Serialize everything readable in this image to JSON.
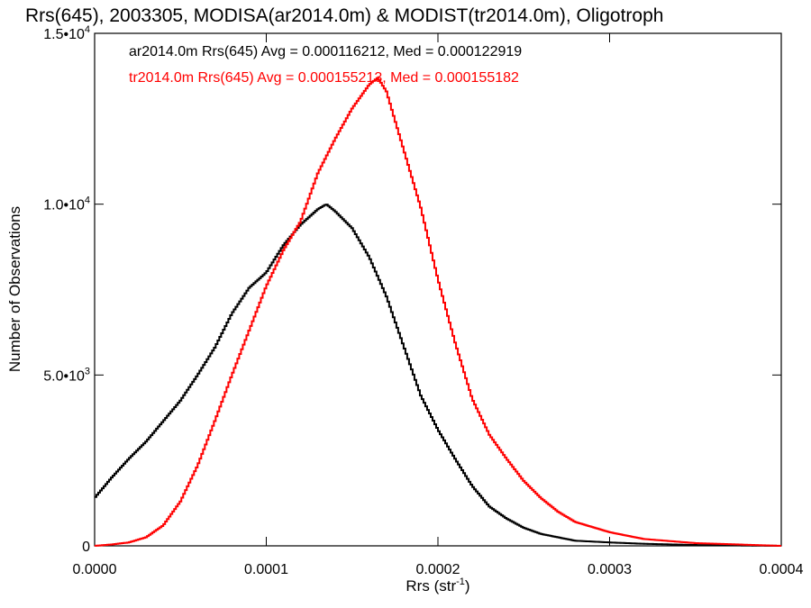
{
  "chart_data": {
    "type": "line",
    "title": "Rrs(645), 2003305, MODISA(ar2014.0m) & MODIST(tr2014.0m), Oligotroph",
    "xlabel": "Rrs (str",
    "xlabel_sup": "-1",
    "xlabel_close": ")",
    "ylabel": "Number of Observations",
    "xlim": [
      0.0,
      0.0004
    ],
    "ylim": [
      0,
      15000
    ],
    "x_ticks": [
      {
        "value": 0.0,
        "label": "0.0000"
      },
      {
        "value": 0.0001,
        "label": "0.0001"
      },
      {
        "value": 0.0002,
        "label": "0.0002"
      },
      {
        "value": 0.0003,
        "label": "0.0003"
      },
      {
        "value": 0.0004,
        "label": "0.0004"
      }
    ],
    "y_ticks": [
      {
        "value": 0,
        "label": "0",
        "sup": ""
      },
      {
        "value": 5000,
        "label": "5.0•10",
        "sup": "3"
      },
      {
        "value": 10000,
        "label": "1.0•10",
        "sup": "4"
      },
      {
        "value": 15000,
        "label": "1.5•10",
        "sup": "4"
      }
    ],
    "annotations": [
      {
        "text": "ar2014.0m Rrs(645) Avg = 0.000116212, Med = 0.000122919",
        "color": "#000000"
      },
      {
        "text": "tr2014.0m Rrs(645) Avg = 0.000155213, Med = 0.000155182",
        "color": "#ff0000"
      }
    ],
    "grid": false,
    "series": [
      {
        "color": "#000000",
        "x": [
          0.0,
          1e-05,
          2e-05,
          3e-05,
          4e-05,
          5e-05,
          6e-05,
          7e-05,
          8e-05,
          9e-05,
          0.0001,
          0.00011,
          0.00012,
          0.00013,
          0.000135,
          0.00014,
          0.00015,
          0.00016,
          0.00017,
          0.00018,
          0.00019,
          0.0002,
          0.00021,
          0.00022,
          0.00023,
          0.00024,
          0.00025,
          0.00026,
          0.00027,
          0.00028,
          0.0003,
          0.00032,
          0.00035,
          0.0004
        ],
        "values": [
          1400,
          2000,
          2550,
          3050,
          3650,
          4250,
          5000,
          5800,
          6800,
          7550,
          8000,
          8800,
          9400,
          9850,
          10000,
          9800,
          9300,
          8450,
          7300,
          5850,
          4400,
          3400,
          2550,
          1750,
          1150,
          800,
          530,
          350,
          250,
          150,
          100,
          60,
          25,
          0
        ]
      },
      {
        "color": "#ff0000",
        "x": [
          0.0,
          1e-05,
          2e-05,
          3e-05,
          4e-05,
          5e-05,
          6e-05,
          7e-05,
          8e-05,
          9e-05,
          0.0001,
          0.00011,
          0.00012,
          0.00013,
          0.00014,
          0.00015,
          0.00016,
          0.000165,
          0.00017,
          0.00018,
          0.00019,
          0.0002,
          0.00021,
          0.00022,
          0.00023,
          0.00024,
          0.00025,
          0.00026,
          0.00027,
          0.00028,
          0.0003,
          0.00032,
          0.00035,
          0.0004
        ],
        "values": [
          0,
          40,
          100,
          250,
          600,
          1300,
          2350,
          3650,
          5000,
          6300,
          7600,
          8650,
          9500,
          10900,
          11900,
          12800,
          13500,
          13700,
          13300,
          11600,
          9900,
          7800,
          5950,
          4300,
          3250,
          2550,
          1900,
          1400,
          1000,
          700,
          400,
          200,
          80,
          0
        ]
      }
    ]
  }
}
